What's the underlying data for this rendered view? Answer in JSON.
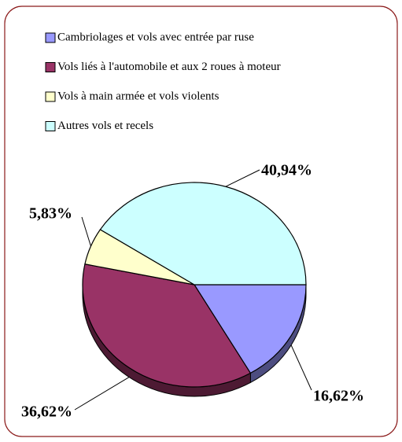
{
  "chart_data": {
    "type": "pie",
    "categories": [
      "Cambriolages et vols avec entrée par ruse",
      "Vols liés à l'automobile et aux 2 roues à moteur",
      "Vols à main armée et vols violents",
      "Autres vols et recels"
    ],
    "values": [
      16.62,
      36.62,
      5.83,
      40.94
    ],
    "value_labels": [
      "16,62%",
      "36,62%",
      "5,83%",
      "40,94%"
    ],
    "colors": [
      "#9999ff",
      "#993366",
      "#ffffcc",
      "#ccffff"
    ],
    "legend": "top"
  }
}
